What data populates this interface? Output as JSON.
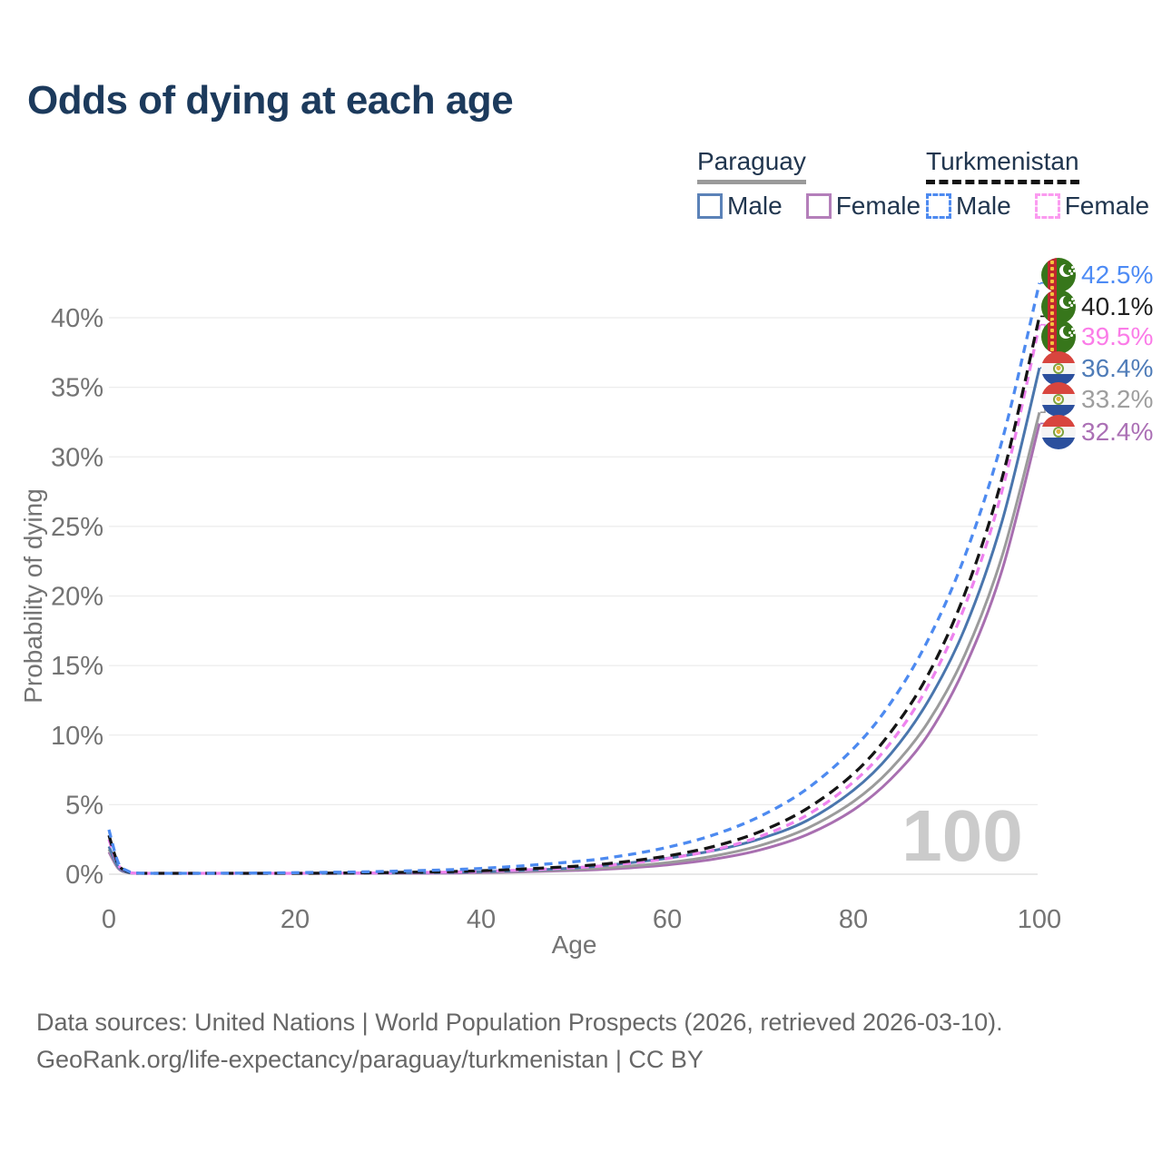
{
  "page": {
    "title": "Odds of dying at each age"
  },
  "legend": {
    "paraguay": {
      "label": "Paraguay",
      "male": "Male",
      "female": "Female"
    },
    "turkmenistan": {
      "label": "Turkmenistan",
      "male": "Male",
      "female": "Female"
    }
  },
  "chart_data": {
    "type": "line",
    "title": "Odds of dying at each age",
    "xlabel": "Age",
    "ylabel": "Probability of dying",
    "x_ticks": [
      0,
      20,
      40,
      60,
      80,
      100
    ],
    "y_tick_values": [
      0,
      5,
      10,
      15,
      20,
      25,
      30,
      35,
      40
    ],
    "y_tick_labels": [
      "0%",
      "5%",
      "10%",
      "15%",
      "20%",
      "25%",
      "30%",
      "35%",
      "40%"
    ],
    "xlim": [
      0,
      100
    ],
    "ylim": [
      0,
      43.5
    ],
    "grid": "horizontal-only",
    "legend_position": "top-right",
    "watermark": "100",
    "ages": [
      0,
      1,
      2,
      3,
      5,
      10,
      20,
      30,
      40,
      50,
      55,
      60,
      65,
      70,
      75,
      80,
      84,
      88,
      92,
      96,
      100
    ],
    "series": [
      {
        "name": "Turkmenistan Male",
        "country": "Turkmenistan",
        "sex": "male",
        "style": "dashed",
        "color": "#4d8af0",
        "label_color": "#4d8bf5",
        "end_label": "42.5%",
        "values": [
          3.2,
          0.83,
          0.24,
          0.09,
          0.05,
          0.06,
          0.11,
          0.21,
          0.42,
          0.9,
          1.31,
          1.93,
          2.83,
          4.17,
          6.13,
          9.03,
          12.3,
          16.8,
          22.9,
          31.2,
          42.5
        ]
      },
      {
        "name": "Turkmenistan Both sexes",
        "country": "Turkmenistan",
        "sex": "both",
        "style": "dashed",
        "color": "#151515",
        "label_color": "#222222",
        "end_label": "40.1%",
        "values": [
          2.8,
          0.72,
          0.2,
          0.07,
          0.03,
          0.04,
          0.06,
          0.12,
          0.25,
          0.57,
          0.86,
          1.31,
          2.0,
          3.07,
          4.71,
          7.21,
          10.2,
          14.3,
          20.2,
          28.5,
          40.1
        ]
      },
      {
        "name": "Turkmenistan Female",
        "country": "Turkmenistan",
        "sex": "female",
        "style": "dashed",
        "color": "#ee82ee",
        "label_color": "#fb7ce8",
        "end_label": "39.5%",
        "values": [
          2.5,
          0.65,
          0.18,
          0.06,
          0.03,
          0.03,
          0.05,
          0.1,
          0.2,
          0.47,
          0.72,
          1.12,
          1.74,
          2.72,
          4.24,
          6.62,
          9.45,
          13.5,
          19.3,
          27.6,
          39.5
        ]
      },
      {
        "name": "Paraguay Male",
        "country": "Paraguay",
        "sex": "male",
        "style": "solid",
        "color": "#4a76ad",
        "label_color": "#4f7cb8",
        "end_label": "36.4%",
        "values": [
          2.0,
          0.52,
          0.15,
          0.05,
          0.03,
          0.03,
          0.05,
          0.09,
          0.18,
          0.45,
          0.75,
          1.15,
          1.7,
          2.55,
          3.85,
          6.03,
          8.63,
          12.4,
          17.7,
          25.4,
          36.4
        ]
      },
      {
        "name": "Paraguay Both sexes",
        "country": "Paraguay",
        "sex": "both",
        "style": "solid",
        "color": "#9b9b9b",
        "label_color": "#9e9e9e",
        "end_label": "33.2%",
        "values": [
          1.8,
          0.47,
          0.13,
          0.05,
          0.02,
          0.03,
          0.04,
          0.07,
          0.15,
          0.34,
          0.53,
          0.83,
          1.31,
          2.07,
          3.29,
          5.22,
          7.55,
          10.9,
          15.8,
          22.9,
          33.2
        ]
      },
      {
        "name": "Paraguay Female",
        "country": "Paraguay",
        "sex": "female",
        "style": "solid",
        "color": "#a86fb0",
        "label_color": "#ab70b5",
        "end_label": "32.4%",
        "values": [
          1.6,
          0.42,
          0.12,
          0.04,
          0.02,
          0.02,
          0.03,
          0.06,
          0.11,
          0.27,
          0.42,
          0.67,
          1.08,
          1.75,
          2.84,
          4.62,
          6.82,
          10.0,
          14.9,
          21.9,
          32.4
        ]
      }
    ]
  },
  "footer": {
    "line1": "Data sources: United Nations | World Population Prospects (2026, retrieved 2026-03-10).",
    "line2": "GeoRank.org/life-expectancy/paraguay/turkmenistan | CC BY"
  }
}
